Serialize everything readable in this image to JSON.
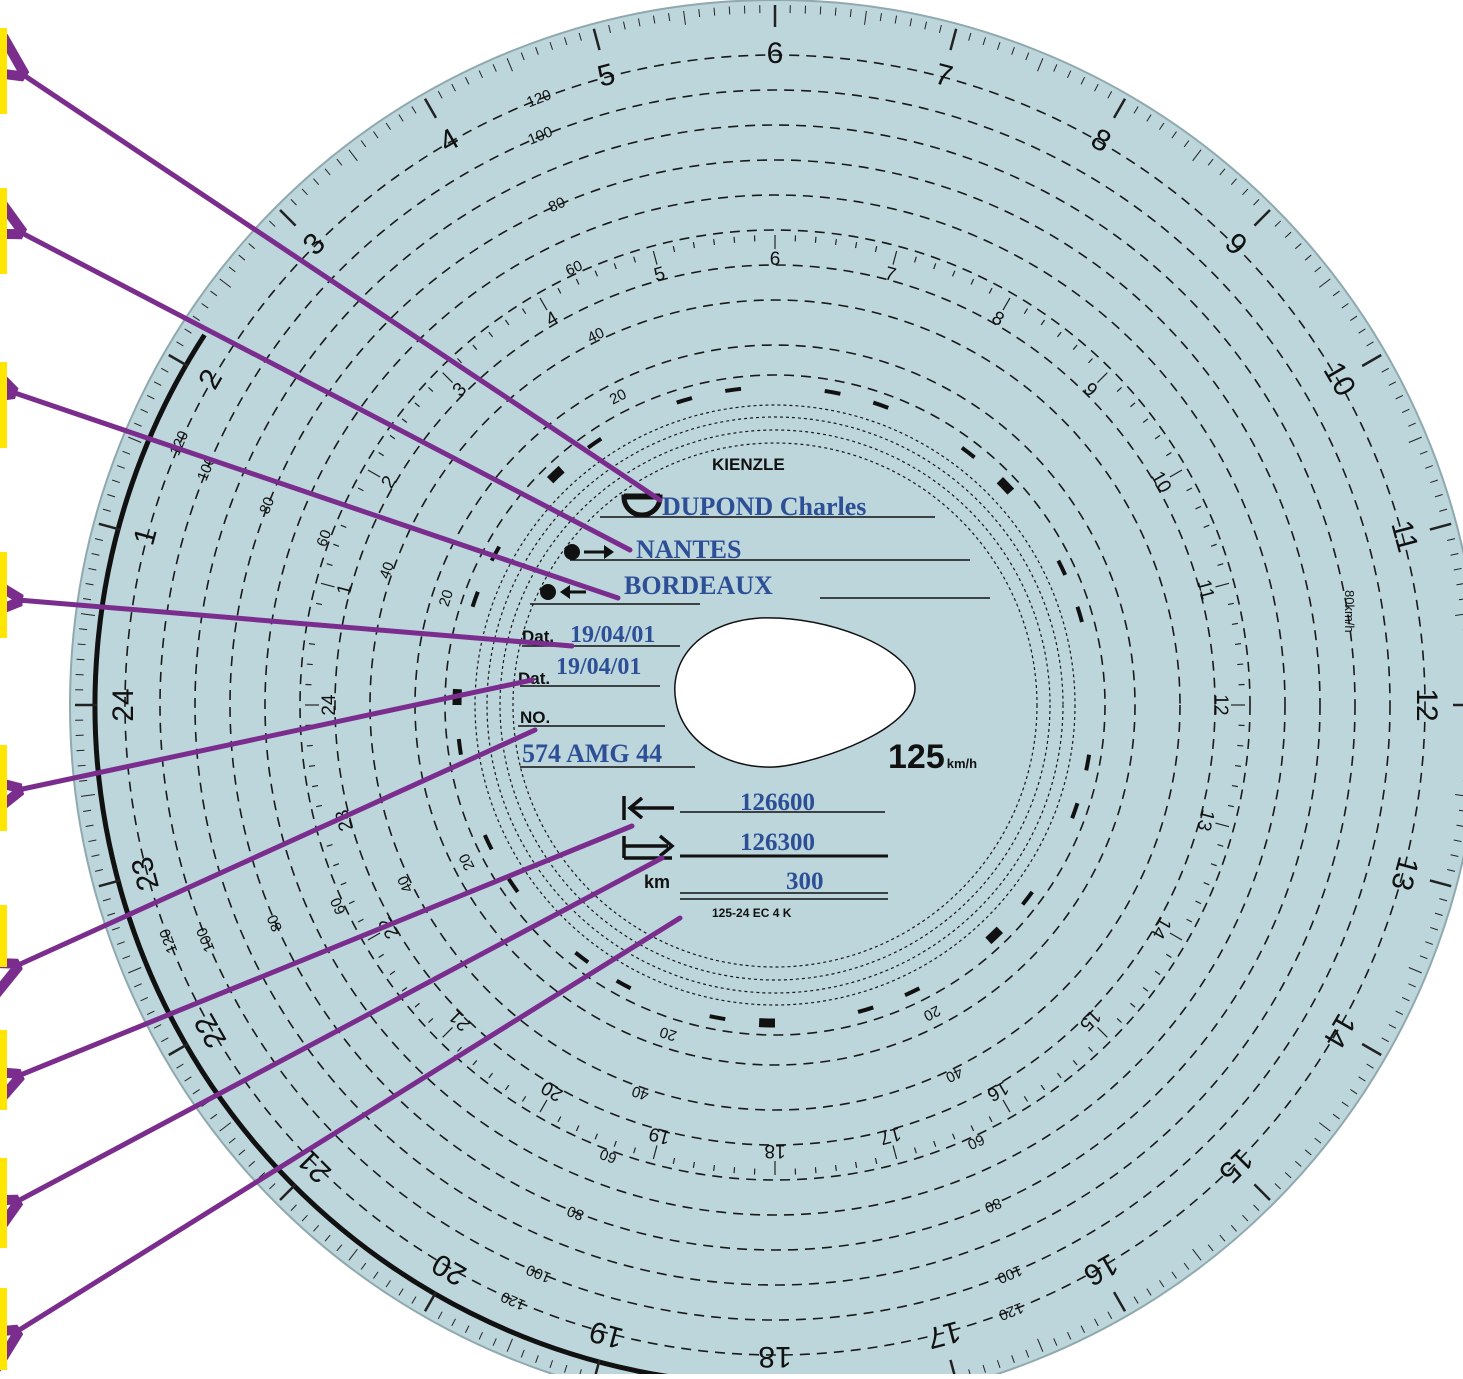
{
  "disc": {
    "brand": "KIENZLE",
    "speed_rating": "125",
    "speed_unit": "km/h",
    "model_code": "125-24 EC 4 K",
    "colors": {
      "disc": "#bcd6dc",
      "ink": "#2d4f96",
      "arrow": "#7b2d8e",
      "marker": "#ffe600"
    }
  },
  "fields": {
    "driver_name": "DUPOND Charles",
    "start_place": "NANTES",
    "end_place": "BORDEAUX",
    "date_label_1": "Dat.",
    "date_start": "19/04/01",
    "date_label_2": "Dat.",
    "date_end": "19/04/01",
    "vehicle_label": "NO.",
    "vehicle_plate": "574 AMG 44",
    "odometer_end": "126600",
    "odometer_start": "126300",
    "km_label": "km",
    "distance": "300"
  },
  "hour_numbers": [
    "1",
    "2",
    "3",
    "4",
    "5",
    "6",
    "7",
    "8",
    "9",
    "10",
    "11",
    "12",
    "13",
    "14",
    "15",
    "16",
    "17",
    "18",
    "19",
    "20",
    "21",
    "22",
    "23",
    "24"
  ],
  "speed_labels": [
    "20",
    "40",
    "60",
    "80",
    "100",
    "120",
    "125"
  ],
  "speed_outer_labels": [
    "80",
    "100",
    "120",
    "125"
  ],
  "side_unit_label": "80km/h",
  "activity_symbols": [
    "rest-bed-icon",
    "work-hammers-icon",
    "availability-box-icon",
    "driving-wheel-icon"
  ]
}
